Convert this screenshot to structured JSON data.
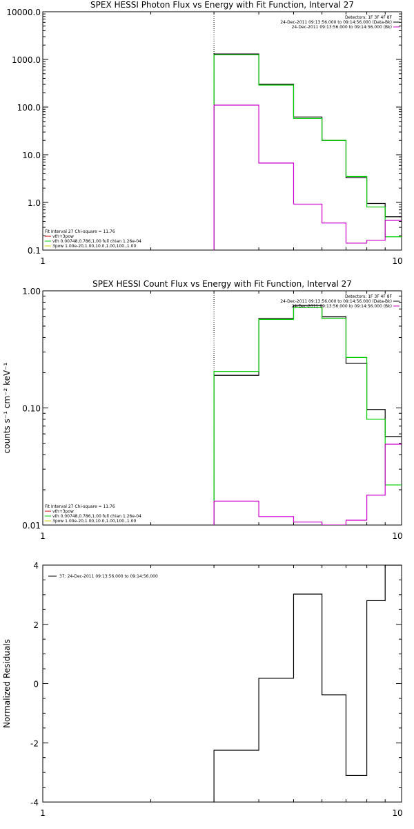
{
  "chart_data": [
    {
      "type": "line",
      "step": true,
      "title": "SPEX HESSI Photon Flux vs Energy with Fit Function, Interval 27",
      "ylabel": "",
      "xlabel": "",
      "xscale": "log",
      "yscale": "log",
      "xlim": [
        1,
        10
      ],
      "ylim": [
        0.1,
        10000
      ],
      "x_tick_labels": [
        "1",
        "10"
      ],
      "y_tick_labels": [
        "0.1",
        "1.0",
        "10.0",
        "100.0",
        "1000.0",
        "10000.0"
      ],
      "vline_x": 3,
      "bin_edges": [
        3,
        4,
        5,
        6,
        7,
        8,
        9,
        10
      ],
      "series": [
        {
          "color": "#000000",
          "values": [
            1300,
            300,
            62,
            20,
            3.3,
            0.95,
            0.5
          ]
        },
        {
          "color": "#00cc00",
          "values": [
            1250,
            290,
            58,
            20,
            3.5,
            0.8,
            0.19
          ]
        },
        {
          "color": "#cc00cc",
          "values": [
            110,
            6.7,
            0.92,
            0.37,
            0.14,
            0.16,
            0.42
          ]
        }
      ],
      "legend_top": {
        "lines": [
          "Detectors: 1F 3F 4F 8F",
          "24-Dec-2011 09:13:56.000 to 09:14:56.000 (Data-Bk)",
          "24-Dec-2011 09:13:56.000 to 09:14:56.000 (Bk)"
        ],
        "colors": [
          "#000000",
          "#000000",
          "#cc00cc"
        ]
      },
      "legend_bottom": {
        "lines": [
          "Fit Interval 27    Chi-square = 11.76",
          "vth+3pow",
          "vth 0.00748,0.786,1.00  full chian 1.26e-04",
          "3pow 1.00e-20,1.00,10.0,1.00,100.,1.00"
        ],
        "colors": [
          "",
          "#cc0000",
          "#00cc00",
          "#cccc00"
        ]
      }
    },
    {
      "type": "line",
      "step": true,
      "title": "SPEX HESSI Count Flux vs Energy with Fit Function, Interval 27",
      "ylabel": "counts s⁻¹ cm⁻² keV⁻¹",
      "xlabel": "",
      "xscale": "log",
      "yscale": "log",
      "xlim": [
        1,
        10
      ],
      "ylim": [
        0.01,
        1.0
      ],
      "x_tick_labels": [
        "1",
        "10"
      ],
      "y_tick_labels": [
        "0.01",
        "0.10",
        "1.00"
      ],
      "vline_x": 3,
      "bin_edges": [
        3,
        4,
        5,
        6,
        7,
        8,
        9,
        10
      ],
      "series": [
        {
          "color": "#000000",
          "values": [
            0.19,
            0.58,
            0.75,
            0.6,
            0.24,
            0.097,
            0.057
          ]
        },
        {
          "color": "#00cc00",
          "values": [
            0.205,
            0.57,
            0.72,
            0.58,
            0.27,
            0.08,
            0.022
          ]
        },
        {
          "color": "#cc00cc",
          "values": [
            0.016,
            0.0118,
            0.0106,
            0.01,
            0.011,
            0.018,
            0.049
          ]
        }
      ],
      "legend_top": {
        "lines": [
          "Detectors: 1F 3F 4F 8F",
          "24-Dec-2011 09:13:56.000 to 09:14:56.000 (Data-Bk)",
          "24-Dec-2011 09:13:56.000 to 09:14:56.000 (Bk)"
        ],
        "colors": [
          "#000000",
          "#000000",
          "#cc00cc"
        ]
      },
      "legend_bottom": {
        "lines": [
          "Fit Interval 27    Chi-square = 11.76",
          "vth+3pow",
          "vth 0.00748,0.786,1.00  full chian 1.26e-04",
          "3pow 1.00e-20,1.00,10.0,1.00,100.,1.00"
        ],
        "colors": [
          "",
          "#cc0000",
          "#00cc00",
          "#cccc00"
        ]
      }
    },
    {
      "type": "line",
      "step": true,
      "title": "",
      "ylabel": "Normalized Residuals",
      "xlabel": "",
      "xscale": "log",
      "yscale": "linear",
      "xlim": [
        1,
        10
      ],
      "ylim": [
        -4,
        4
      ],
      "x_tick_labels": [
        "1",
        "10"
      ],
      "y_tick_labels": [
        "-4",
        "-2",
        "0",
        "2",
        "4"
      ],
      "bin_edges": [
        3,
        4,
        5,
        6,
        7,
        8,
        9,
        10
      ],
      "series": [
        {
          "color": "#000000",
          "values": [
            -2.25,
            0.18,
            3.02,
            -0.38,
            -3.1,
            2.8,
            4.0
          ]
        }
      ],
      "legend_top": {
        "lines": [
          "37: 24-Dec-2011 09:13:56.000 to 09:14:56.000"
        ],
        "colors": [
          "#000000"
        ]
      }
    }
  ]
}
